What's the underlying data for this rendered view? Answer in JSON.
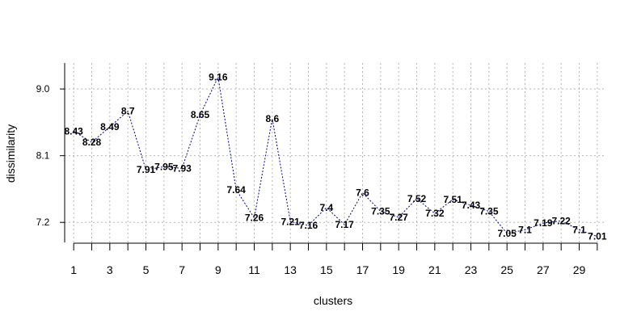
{
  "chart_data": {
    "type": "line",
    "title": "",
    "xlabel": "clusters",
    "ylabel": "dissimilarity",
    "x": [
      1,
      2,
      3,
      4,
      5,
      6,
      7,
      8,
      9,
      10,
      11,
      12,
      13,
      14,
      15,
      16,
      17,
      18,
      19,
      20,
      21,
      22,
      23,
      24,
      25,
      26,
      27,
      28,
      29,
      30
    ],
    "values": [
      8.43,
      8.28,
      8.49,
      8.7,
      7.91,
      7.95,
      7.93,
      8.65,
      9.16,
      7.64,
      7.26,
      8.6,
      7.21,
      7.16,
      7.4,
      7.17,
      7.6,
      7.35,
      7.27,
      7.52,
      7.32,
      7.51,
      7.43,
      7.35,
      7.05,
      7.1,
      7.19,
      7.22,
      7.1,
      7.01
    ],
    "data_labels": [
      "8.43",
      "8.28",
      "8.49",
      "8.7",
      "7.91",
      "7.95",
      "7.93",
      "8.65",
      "9.16",
      "7.64",
      "7.26",
      "8.6",
      "7.21",
      "7.16",
      "7.4",
      "7.17",
      "7.6",
      "7.35",
      "7.27",
      "7.52",
      "7.32",
      "7.51",
      "7.43",
      "7.35",
      "7.05",
      "7.1",
      "7.19",
      "7.22",
      "7.1",
      "7.01"
    ],
    "x_ticks": [
      1,
      3,
      5,
      7,
      9,
      11,
      13,
      15,
      17,
      19,
      21,
      23,
      25,
      27,
      29
    ],
    "x_tick_labels": [
      "1",
      "3",
      "5",
      "7",
      "9",
      "11",
      "13",
      "15",
      "17",
      "19",
      "21",
      "23",
      "25",
      "27",
      "29"
    ],
    "y_ticks": [
      7.2,
      8.1,
      9.0
    ],
    "y_tick_labels": [
      "7.2",
      "8.1",
      "9.0"
    ],
    "xlim": [
      0.5,
      30.5
    ],
    "ylim": [
      6.93,
      9.35
    ],
    "grid": true,
    "line_color": "#00008b"
  }
}
